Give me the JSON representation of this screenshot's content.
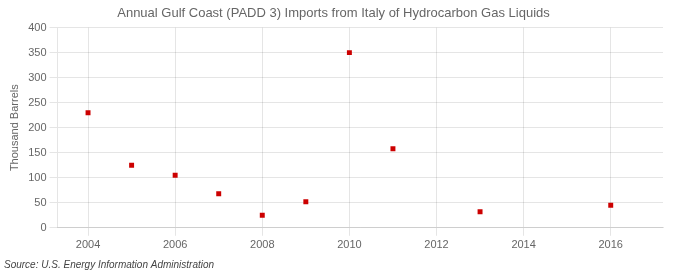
{
  "chart_data": {
    "type": "scatter",
    "title": "Annual Gulf Coast (PADD 3) Imports from Italy of Hydrocarbon Gas Liquids",
    "ylabel": "Thousand Barrels",
    "source": "Source: U.S. Energy Information Administration",
    "x": [
      2004,
      2005,
      2006,
      2007,
      2008,
      2009,
      2010,
      2011,
      2013,
      2016
    ],
    "values": [
      230,
      125,
      105,
      68,
      25,
      52,
      350,
      158,
      32,
      45
    ],
    "color": "#cc0000",
    "marker": "square",
    "xlim": [
      2003.3,
      2017.2
    ],
    "ylim": [
      0,
      400
    ],
    "xticks": [
      2004,
      2006,
      2008,
      2010,
      2012,
      2014,
      2016
    ],
    "yticks": [
      0,
      50,
      100,
      150,
      200,
      250,
      300,
      350,
      400
    ],
    "grid": true
  }
}
